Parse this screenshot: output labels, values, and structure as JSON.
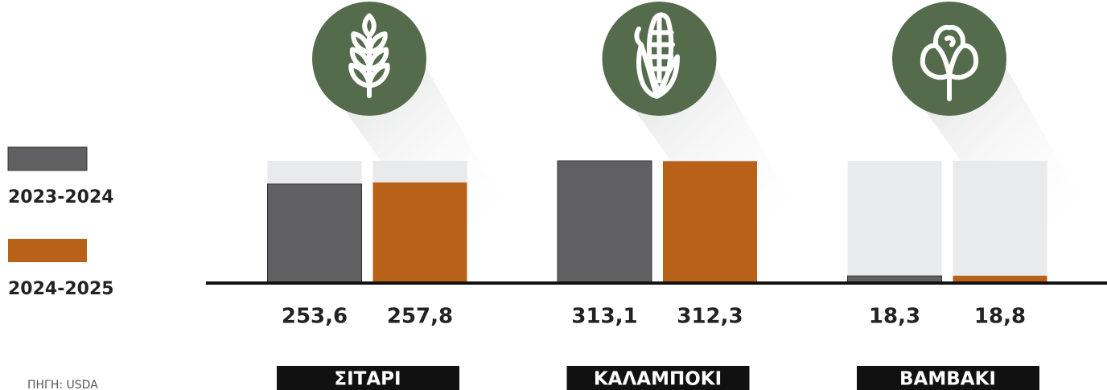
{
  "chart_data": {
    "type": "bar",
    "categories": [
      "ΣΙΤΑΡΙ",
      "ΚΑΛΑΜΠΟΚΙ",
      "ΒΑΜΒΑΚΙ"
    ],
    "series": [
      {
        "name": "2023-2024",
        "color": "#606062",
        "values": [
          253.6,
          313.1,
          18.3
        ],
        "value_labels": [
          "253,6",
          "313,1",
          "18,3"
        ]
      },
      {
        "name": "2024-2025",
        "color": "#b86119",
        "values": [
          257.8,
          312.3,
          18.8
        ],
        "value_labels": [
          "257,8",
          "312,3",
          "18,8"
        ]
      }
    ],
    "ylim": [
      0,
      313.1
    ],
    "source": "ΠΗΓΗ: USDA"
  }
}
